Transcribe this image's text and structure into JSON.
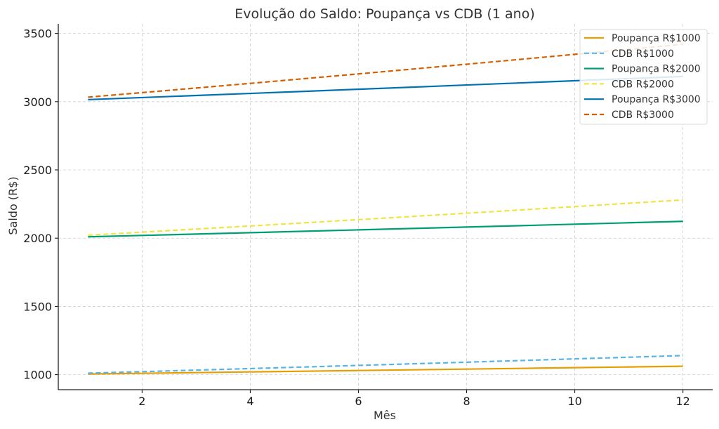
{
  "chart_data": {
    "type": "line",
    "title": "Evolução do Saldo: Poupança vs CDB (1 ano)",
    "xlabel": "Mês",
    "ylabel": "Saldo (R$)",
    "x": [
      1,
      2,
      3,
      4,
      5,
      6,
      7,
      8,
      9,
      10,
      11,
      12
    ],
    "xlim": [
      0.45,
      12.55
    ],
    "ylim": [
      890,
      3570
    ],
    "xticks": [
      2,
      4,
      6,
      8,
      10,
      12
    ],
    "yticks": [
      1000,
      1500,
      2000,
      2500,
      3000,
      3500
    ],
    "grid": true,
    "legend_position": "top-right",
    "series": [
      {
        "name": "Poupança R$1000",
        "color": "#E69F00",
        "dash": "solid",
        "values": [
          1005.0,
          1010.0,
          1015.1,
          1020.2,
          1025.3,
          1030.4,
          1035.6,
          1040.8,
          1046.0,
          1051.2,
          1056.5,
          1061.8
        ]
      },
      {
        "name": "CDB R$1000",
        "color": "#56B4E9",
        "dash": "dashed",
        "values": [
          1011.0,
          1022.1,
          1033.4,
          1044.7,
          1056.2,
          1067.8,
          1079.6,
          1091.4,
          1103.4,
          1115.6,
          1127.8,
          1140.2
        ]
      },
      {
        "name": "Poupança R$2000",
        "color": "#009E73",
        "dash": "solid",
        "values": [
          2010.0,
          2020.1,
          2030.2,
          2040.3,
          2050.5,
          2060.8,
          2071.1,
          2081.4,
          2091.8,
          2102.3,
          2112.8,
          2123.4
        ]
      },
      {
        "name": "CDB R$2000",
        "color": "#F0E442",
        "dash": "dashed",
        "values": [
          2022.0,
          2044.2,
          2066.7,
          2089.5,
          2112.4,
          2135.7,
          2159.2,
          2182.9,
          2206.9,
          2231.2,
          2255.7,
          2280.5
        ]
      },
      {
        "name": "Poupança R$3000",
        "color": "#0072B2",
        "dash": "solid",
        "values": [
          3015.0,
          3030.1,
          3045.2,
          3060.4,
          3075.7,
          3091.1,
          3106.6,
          3122.1,
          3137.7,
          3153.4,
          3169.2,
          3185.0
        ]
      },
      {
        "name": "CDB R$3000",
        "color": "#D55E00",
        "dash": "dashed",
        "values": [
          3033.0,
          3066.4,
          3100.1,
          3134.2,
          3168.7,
          3203.5,
          3238.8,
          3274.4,
          3310.4,
          3346.8,
          3383.7,
          3420.9
        ]
      }
    ]
  }
}
